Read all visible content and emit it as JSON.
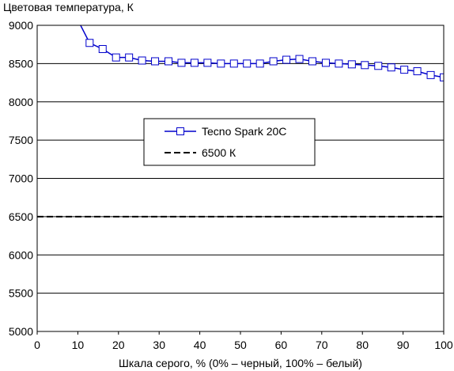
{
  "chart_data": {
    "type": "line",
    "title": "",
    "ylabel": "Цветовая температура, К",
    "xlabel": "Шкала серого, % (0% – черный, 100% – белый)",
    "xlim": [
      0,
      100
    ],
    "ylim": [
      5000,
      9000
    ],
    "xticks": [
      0,
      10,
      20,
      30,
      40,
      50,
      60,
      70,
      80,
      90,
      100
    ],
    "yticks": [
      5000,
      5500,
      6000,
      6500,
      7000,
      7500,
      8000,
      8500,
      9000
    ],
    "grid": "horizontal",
    "legend_position": "upper-center",
    "series": [
      {
        "name": "Tecno Spark 20C",
        "color": "#0000cc",
        "marker": "square",
        "style": "solid",
        "x": [
          9.7,
          12.9,
          16.1,
          19.4,
          22.6,
          25.8,
          29.0,
          32.3,
          35.5,
          38.7,
          41.9,
          45.2,
          48.4,
          51.6,
          54.8,
          58.1,
          61.3,
          64.5,
          67.7,
          71.0,
          74.2,
          77.4,
          80.6,
          83.9,
          87.1,
          90.3,
          93.5,
          96.8,
          100
        ],
        "y": [
          9100,
          8770,
          8690,
          8580,
          8580,
          8540,
          8530,
          8530,
          8510,
          8510,
          8510,
          8500,
          8500,
          8500,
          8500,
          8530,
          8550,
          8560,
          8530,
          8510,
          8500,
          8490,
          8480,
          8470,
          8450,
          8420,
          8400,
          8350,
          8320
        ],
        "marker_from_index": 1
      },
      {
        "name": "6500 К",
        "color": "#000000",
        "style": "dashed",
        "x": [
          0,
          100
        ],
        "y": [
          6500,
          6500
        ]
      }
    ]
  }
}
